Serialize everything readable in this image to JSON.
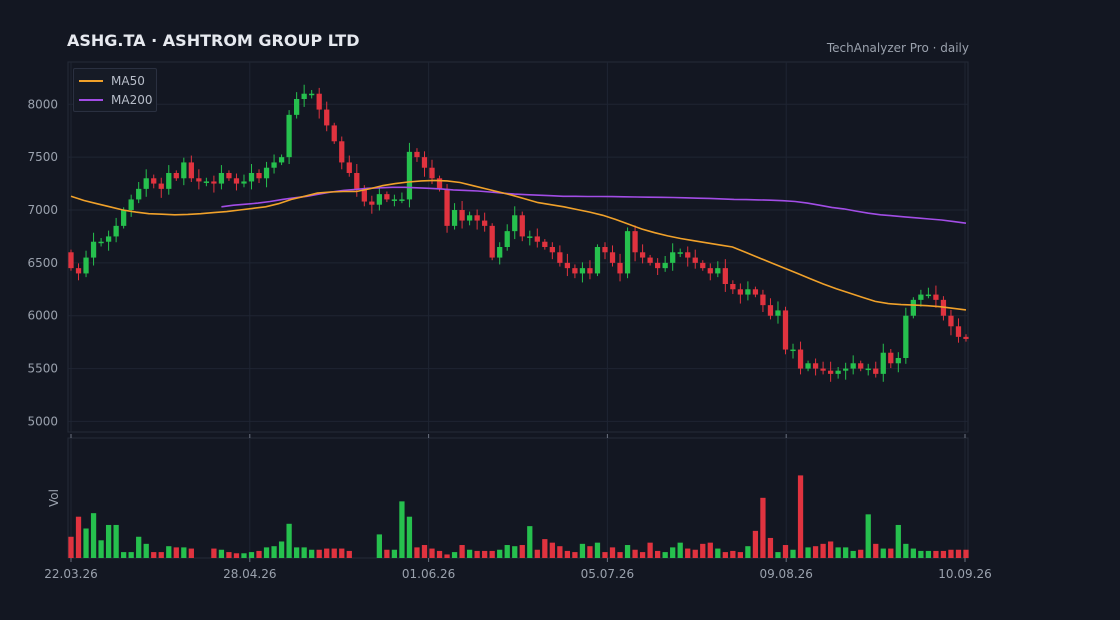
{
  "header": {
    "title": "ASHG.TA  ·  ASHTROM GROUP LTD",
    "source": "TechAnalyzer Pro · daily"
  },
  "colors": {
    "background": "#131722",
    "grid": "#1f2533",
    "up": "#26c04e",
    "down": "#e0333f",
    "ma50": "#f0a12a",
    "ma200": "#a24de6",
    "text": "#9aa1ad"
  },
  "chart_data": {
    "type": "candlestick",
    "title": "ASHG.TA  ·  ASHTROM GROUP LTD",
    "xlabel": "",
    "ylabel": "",
    "x_tick_labels": [
      "22.03.26",
      "28.04.26",
      "01.06.26",
      "05.07.26",
      "09.08.26",
      "10.09.26"
    ],
    "y_ticks": [
      5000,
      5500,
      6000,
      6500,
      7000,
      7500,
      8000
    ],
    "ylim": [
      4900,
      8400
    ],
    "volume_label": "Vol",
    "legend": {
      "placement": "top-left",
      "items": [
        {
          "name": "MA50",
          "color": "#f0a12a"
        },
        {
          "name": "MA200",
          "color": "#a24de6"
        }
      ]
    },
    "grid": true,
    "closes": [
      6450,
      6400,
      6550,
      6700,
      6700,
      6750,
      6850,
      7000,
      7100,
      7200,
      7300,
      7250,
      7200,
      7350,
      7300,
      7450,
      7300,
      7270,
      7270,
      7250,
      7350,
      7300,
      7250,
      7270,
      7350,
      7300,
      7400,
      7450,
      7500,
      7900,
      8050,
      8100,
      8100,
      7950,
      7800,
      7650,
      7450,
      7350,
      7200,
      7080,
      7050,
      7150,
      7100,
      7100,
      7100,
      7550,
      7500,
      7400,
      7300,
      7200,
      6850,
      7000,
      6900,
      6950,
      6900,
      6850,
      6550,
      6650,
      6800,
      6950,
      6750,
      6750,
      6700,
      6650,
      6600,
      6500,
      6450,
      6400,
      6450,
      6400,
      6650,
      6600,
      6500,
      6400,
      6800,
      6600,
      6550,
      6500,
      6450,
      6500,
      6600,
      6600,
      6550,
      6500,
      6450,
      6400,
      6450,
      6300,
      6250,
      6200,
      6250,
      6200,
      6100,
      6000,
      6050,
      5680,
      5680,
      5500,
      5550,
      5500,
      5480,
      5450,
      5480,
      5500,
      5550,
      5500,
      5500,
      5450,
      5650,
      5550,
      5600,
      6000,
      6150,
      6200,
      6200,
      6150,
      6000,
      5900,
      5800,
      5780
    ],
    "volume_scale_max": 100,
    "volumes": [
      18,
      35,
      25,
      38,
      15,
      28,
      28,
      5,
      5,
      18,
      12,
      5,
      5,
      10,
      9,
      9,
      8,
      0,
      0,
      8,
      7,
      5,
      4,
      4,
      5,
      6,
      9,
      10,
      14,
      29,
      9,
      9,
      7,
      7,
      8,
      8,
      8,
      6,
      0,
      0,
      0,
      20,
      7,
      7,
      48,
      35,
      9,
      11,
      8,
      6,
      3,
      5,
      11,
      7,
      6,
      6,
      6,
      7,
      11,
      10,
      11,
      27,
      7,
      16,
      13,
      10,
      6,
      5,
      12,
      10,
      13,
      5,
      9,
      5,
      11,
      7,
      5,
      13,
      6,
      5,
      9,
      13,
      8,
      7,
      12,
      13,
      8,
      5,
      6,
      5,
      10,
      23,
      51,
      17,
      5,
      11,
      7,
      70,
      9,
      10,
      12,
      14,
      9,
      9,
      6,
      7,
      37,
      12,
      8,
      8,
      28,
      12,
      8,
      6,
      6,
      6,
      6,
      7,
      7,
      7
    ],
    "ma50": [
      7130,
      7090,
      7060,
      7030,
      7000,
      6980,
      6965,
      6960,
      6955,
      6958,
      6965,
      6975,
      6985,
      7000,
      7015,
      7030,
      7060,
      7100,
      7130,
      7160,
      7170,
      7175,
      7175,
      7200,
      7230,
      7250,
      7265,
      7275,
      7280,
      7275,
      7260,
      7230,
      7200,
      7170,
      7140,
      7105,
      7070,
      7050,
      7030,
      7005,
      6980,
      6950,
      6910,
      6865,
      6820,
      6785,
      6755,
      6730,
      6710,
      6690,
      6670,
      6650,
      6600,
      6550,
      6500,
      6450,
      6400,
      6350,
      6300,
      6255,
      6215,
      6175,
      6135,
      6115,
      6105,
      6100,
      6095,
      6085,
      6070,
      6055
    ],
    "ma200": [
      7030,
      7045,
      7055,
      7065,
      7080,
      7100,
      7115,
      7130,
      7150,
      7170,
      7185,
      7195,
      7205,
      7210,
      7215,
      7215,
      7210,
      7205,
      7200,
      7190,
      7185,
      7180,
      7170,
      7160,
      7150,
      7145,
      7140,
      7135,
      7130,
      7130,
      7128,
      7128,
      7127,
      7125,
      7123,
      7121,
      7120,
      7118,
      7115,
      7112,
      7110,
      7105,
      7100,
      7098,
      7096,
      7093,
      7088,
      7080,
      7065,
      7045,
      7025,
      7010,
      6990,
      6970,
      6955,
      6945,
      6935,
      6925,
      6915,
      6905,
      6890,
      6875
    ]
  }
}
